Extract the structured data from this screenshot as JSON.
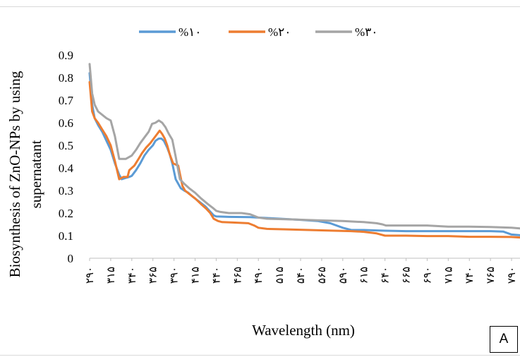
{
  "chart_data": {
    "type": "line",
    "title": "",
    "xlabel": "Wavelength (nm)",
    "ylabel": [
      "Biosynthesis of ZnO-NPs by using",
      "supernatant"
    ],
    "ylim": [
      0,
      0.9
    ],
    "yticks": [
      "0",
      "0.1",
      "0.2",
      "0.3",
      "0.4",
      "0.5",
      "0.6",
      "0.7",
      "0.8",
      "0.9"
    ],
    "xlim": [
      290,
      800
    ],
    "xtick_values": [
      290,
      315,
      340,
      365,
      390,
      415,
      440,
      465,
      490,
      515,
      540,
      565,
      590,
      615,
      640,
      665,
      690,
      715,
      740,
      765,
      790
    ],
    "xtick_labels": [
      "۲۹۰",
      "۳۱۵",
      "۳۴۰",
      "۳۶۵",
      "۳۹۰",
      "۴۱۵",
      "۴۴۰",
      "۴۶۵",
      "۴۹۰",
      "۵۱۵",
      "۵۴۰",
      "۵۶۵",
      "۵۹۰",
      "۶۱۵",
      "۶۴۰",
      "۶۶۵",
      "۶۹۰",
      "۷۱۵",
      "۷۴۰",
      "۷۶۵",
      "۷۹۰"
    ],
    "grid": false,
    "legend_position": "top",
    "series": [
      {
        "name": "%۱۰",
        "color": "#5b9bd5",
        "points": [
          [
            290,
            0.82
          ],
          [
            293,
            0.68
          ],
          [
            296,
            0.62
          ],
          [
            300,
            0.59
          ],
          [
            305,
            0.56
          ],
          [
            310,
            0.52
          ],
          [
            315,
            0.48
          ],
          [
            320,
            0.42
          ],
          [
            325,
            0.37
          ],
          [
            328,
            0.35
          ],
          [
            332,
            0.355
          ],
          [
            337,
            0.36
          ],
          [
            340,
            0.365
          ],
          [
            345,
            0.39
          ],
          [
            350,
            0.42
          ],
          [
            355,
            0.455
          ],
          [
            360,
            0.48
          ],
          [
            365,
            0.5
          ],
          [
            368,
            0.52
          ],
          [
            372,
            0.53
          ],
          [
            375,
            0.53
          ],
          [
            378,
            0.52
          ],
          [
            382,
            0.49
          ],
          [
            385,
            0.46
          ],
          [
            388,
            0.42
          ],
          [
            392,
            0.35
          ],
          [
            398,
            0.31
          ],
          [
            402,
            0.3
          ],
          [
            407,
            0.29
          ],
          [
            413,
            0.27
          ],
          [
            420,
            0.25
          ],
          [
            427,
            0.23
          ],
          [
            432,
            0.21
          ],
          [
            437,
            0.19
          ],
          [
            440,
            0.185
          ],
          [
            455,
            0.183
          ],
          [
            480,
            0.182
          ],
          [
            500,
            0.178
          ],
          [
            540,
            0.17
          ],
          [
            560,
            0.165
          ],
          [
            575,
            0.155
          ],
          [
            590,
            0.135
          ],
          [
            600,
            0.125
          ],
          [
            615,
            0.125
          ],
          [
            640,
            0.122
          ],
          [
            665,
            0.12
          ],
          [
            690,
            0.12
          ],
          [
            715,
            0.12
          ],
          [
            740,
            0.12
          ],
          [
            765,
            0.12
          ],
          [
            780,
            0.118
          ],
          [
            790,
            0.105
          ],
          [
            800,
            0.102
          ]
        ]
      },
      {
        "name": "%۲۰",
        "color": "#ed7d31",
        "points": [
          [
            290,
            0.78
          ],
          [
            293,
            0.65
          ],
          [
            296,
            0.62
          ],
          [
            300,
            0.6
          ],
          [
            305,
            0.57
          ],
          [
            310,
            0.54
          ],
          [
            315,
            0.5
          ],
          [
            320,
            0.43
          ],
          [
            325,
            0.35
          ],
          [
            330,
            0.36
          ],
          [
            335,
            0.36
          ],
          [
            337,
            0.39
          ],
          [
            343,
            0.41
          ],
          [
            348,
            0.44
          ],
          [
            352,
            0.465
          ],
          [
            357,
            0.49
          ],
          [
            362,
            0.51
          ],
          [
            366,
            0.53
          ],
          [
            370,
            0.55
          ],
          [
            373,
            0.565
          ],
          [
            376,
            0.55
          ],
          [
            379,
            0.53
          ],
          [
            382,
            0.5
          ],
          [
            385,
            0.46
          ],
          [
            389,
            0.42
          ],
          [
            395,
            0.41
          ],
          [
            400,
            0.32
          ],
          [
            403,
            0.3
          ],
          [
            408,
            0.285
          ],
          [
            415,
            0.265
          ],
          [
            422,
            0.24
          ],
          [
            428,
            0.22
          ],
          [
            433,
            0.2
          ],
          [
            437,
            0.175
          ],
          [
            442,
            0.165
          ],
          [
            447,
            0.16
          ],
          [
            460,
            0.158
          ],
          [
            478,
            0.155
          ],
          [
            485,
            0.145
          ],
          [
            490,
            0.135
          ],
          [
            500,
            0.13
          ],
          [
            520,
            0.128
          ],
          [
            550,
            0.125
          ],
          [
            580,
            0.122
          ],
          [
            600,
            0.12
          ],
          [
            615,
            0.117
          ],
          [
            630,
            0.11
          ],
          [
            640,
            0.1
          ],
          [
            665,
            0.1
          ],
          [
            690,
            0.098
          ],
          [
            715,
            0.098
          ],
          [
            740,
            0.095
          ],
          [
            765,
            0.095
          ],
          [
            790,
            0.094
          ],
          [
            800,
            0.092
          ]
        ]
      },
      {
        "name": "%۳۰",
        "color": "#a5a5a5",
        "points": [
          [
            290,
            0.86
          ],
          [
            293,
            0.73
          ],
          [
            296,
            0.68
          ],
          [
            300,
            0.65
          ],
          [
            310,
            0.62
          ],
          [
            315,
            0.61
          ],
          [
            320,
            0.54
          ],
          [
            325,
            0.44
          ],
          [
            333,
            0.44
          ],
          [
            340,
            0.455
          ],
          [
            345,
            0.48
          ],
          [
            350,
            0.51
          ],
          [
            355,
            0.535
          ],
          [
            360,
            0.56
          ],
          [
            364,
            0.595
          ],
          [
            368,
            0.6
          ],
          [
            372,
            0.61
          ],
          [
            376,
            0.6
          ],
          [
            380,
            0.58
          ],
          [
            384,
            0.55
          ],
          [
            388,
            0.525
          ],
          [
            392,
            0.45
          ],
          [
            397,
            0.35
          ],
          [
            402,
            0.33
          ],
          [
            408,
            0.31
          ],
          [
            415,
            0.29
          ],
          [
            422,
            0.265
          ],
          [
            430,
            0.24
          ],
          [
            437,
            0.22
          ],
          [
            440,
            0.21
          ],
          [
            445,
            0.205
          ],
          [
            455,
            0.2
          ],
          [
            470,
            0.2
          ],
          [
            480,
            0.195
          ],
          [
            490,
            0.18
          ],
          [
            500,
            0.175
          ],
          [
            530,
            0.172
          ],
          [
            560,
            0.168
          ],
          [
            590,
            0.165
          ],
          [
            615,
            0.16
          ],
          [
            630,
            0.155
          ],
          [
            637,
            0.15
          ],
          [
            641,
            0.145
          ],
          [
            665,
            0.145
          ],
          [
            690,
            0.145
          ],
          [
            715,
            0.14
          ],
          [
            740,
            0.14
          ],
          [
            765,
            0.138
          ],
          [
            790,
            0.135
          ],
          [
            800,
            0.132
          ]
        ]
      }
    ]
  },
  "panel_label": "A"
}
